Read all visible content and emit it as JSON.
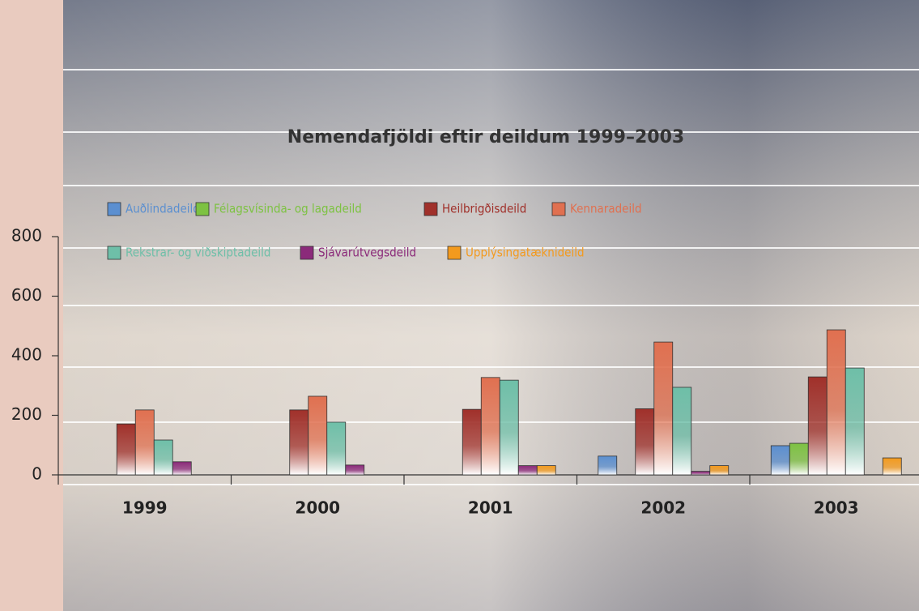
{
  "chart_data": {
    "type": "bar",
    "title": "Nemendafjöldi eftir deildum 1999–2003",
    "categories": [
      "1999",
      "2000",
      "2001",
      "2002",
      "2003"
    ],
    "series": [
      {
        "name": "Auðlindadeild",
        "color": "#5b8fd0",
        "values": [
          0,
          0,
          0,
          63,
          98
        ]
      },
      {
        "name": "Félagsvísinda- og lagadeild",
        "color": "#7dc242",
        "values": [
          0,
          0,
          0,
          0,
          106
        ]
      },
      {
        "name": "Heilbrigðisdeild",
        "color": "#a0302a",
        "values": [
          171,
          218,
          220,
          222,
          329
        ]
      },
      {
        "name": "Kennaradeild",
        "color": "#e07050",
        "values": [
          218,
          264,
          327,
          446,
          487
        ]
      },
      {
        "name": "Rekstrar- og viðskiptadeild",
        "color": "#6ebfa8",
        "values": [
          117,
          177,
          318,
          294,
          359
        ]
      },
      {
        "name": "Sjávarútvegsdeild",
        "color": "#8b2a7a",
        "values": [
          44,
          33,
          31,
          12,
          0
        ]
      },
      {
        "name": "Upplýsingatæknideild",
        "color": "#f39a1e",
        "values": [
          0,
          0,
          31,
          31,
          57
        ]
      }
    ],
    "ylim": [
      0,
      800
    ],
    "yticks": [
      0,
      200,
      400,
      600,
      800
    ]
  }
}
